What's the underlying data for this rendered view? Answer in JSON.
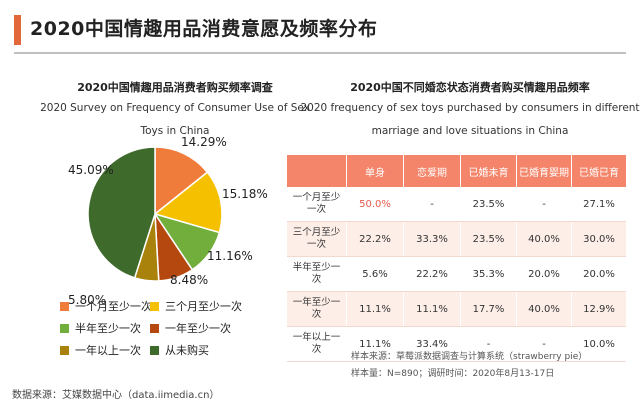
{
  "header": {
    "title": "2020中国情趣用品消费意愿及频率分布",
    "accent_color": "#e2673a"
  },
  "pie_panel": {
    "title_cn": "2020中国情趣用品消费者购买频率调查",
    "title_en": "2020 Survey on Frequency of Consumer Use of Sex Toys in China"
  },
  "table_panel": {
    "title_cn": "2020中国不同婚恋状态消费者购买情趣用品频率",
    "title_en": "2020 frequency of sex toys purchased by consumers in different marriage and love situations in China",
    "header_color": "#f4856a",
    "highlight_color": "#e65a4d",
    "columns": [
      "",
      "单身",
      "恋爱期",
      "已婚未育",
      "已婚育婴期",
      "已婚已育"
    ],
    "rows": [
      {
        "label": "一个月至少一次",
        "cells": [
          "50.0%",
          "-",
          "23.5%",
          "-",
          "27.1%"
        ]
      },
      {
        "label": "三个月至少一次",
        "cells": [
          "22.2%",
          "33.3%",
          "23.5%",
          "40.0%",
          "30.0%"
        ]
      },
      {
        "label": "半年至少一次",
        "cells": [
          "5.6%",
          "22.2%",
          "35.3%",
          "20.0%",
          "20.0%"
        ]
      },
      {
        "label": "一年至少一次",
        "cells": [
          "11.1%",
          "11.1%",
          "17.7%",
          "40.0%",
          "12.9%"
        ]
      },
      {
        "label": "一年以上一次",
        "cells": [
          "11.1%",
          "33.4%",
          "-",
          "-",
          "10.0%"
        ]
      }
    ]
  },
  "notes": {
    "sample_source": "样本来源：草莓派数据调查与计算系统（strawberry pie）",
    "sample_size": "样本量：N=890；调研时间：2020年8月13-17日",
    "data_source": "数据来源：艾媒数据中心（data.iimedia.cn）"
  },
  "chart_data": {
    "type": "pie",
    "title": "2020中国情趣用品消费者购买频率调查",
    "subtitle": "2020 Survey on Frequency of Consumer Use of Sex Toys in China",
    "legend_position": "bottom",
    "slices": [
      {
        "name": "一个月至少一次",
        "value": 14.29,
        "label": "14.29%",
        "color": "#f07c3c"
      },
      {
        "name": "三个月至少一次",
        "value": 15.18,
        "label": "15.18%",
        "color": "#f5c000"
      },
      {
        "name": "半年至少一次",
        "value": 11.16,
        "label": "11.16%",
        "color": "#72ae3c"
      },
      {
        "name": "一年至少一次",
        "value": 8.48,
        "label": "8.48%",
        "color": "#b5480f"
      },
      {
        "name": "一年以上一次",
        "value": 5.8,
        "label": "5.80%",
        "color": "#a8820a"
      },
      {
        "name": "从未购买",
        "value": 45.09,
        "label": "45.09%",
        "color": "#3e6b2b"
      }
    ]
  }
}
